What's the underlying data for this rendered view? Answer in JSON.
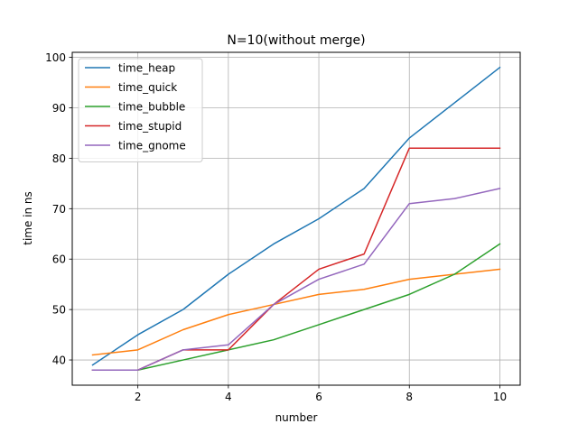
{
  "chart_data": {
    "type": "line",
    "title": "N=10(without merge)",
    "xlabel": "number",
    "ylabel": "time in ns",
    "x": [
      1,
      2,
      3,
      4,
      5,
      6,
      7,
      8,
      9,
      10
    ],
    "xlim": [
      0.55,
      10.45
    ],
    "ylim": [
      35,
      101
    ],
    "xticks": [
      2,
      4,
      6,
      8,
      10
    ],
    "yticks": [
      40,
      50,
      60,
      70,
      80,
      90,
      100
    ],
    "grid": true,
    "legend_position": "top-left",
    "series": [
      {
        "name": "time_heap",
        "color": "#1f77b4",
        "values": [
          39,
          45,
          50,
          57,
          63,
          68,
          74,
          84,
          91,
          98
        ]
      },
      {
        "name": "time_quick",
        "color": "#ff7f0e",
        "values": [
          41,
          42,
          46,
          49,
          51,
          53,
          54,
          56,
          57,
          58
        ]
      },
      {
        "name": "time_bubble",
        "color": "#2ca02c",
        "values": [
          38,
          38,
          40,
          42,
          44,
          47,
          50,
          53,
          57,
          63
        ]
      },
      {
        "name": "time_stupid",
        "color": "#d62728",
        "values": [
          38,
          38,
          42,
          42,
          51,
          58,
          61,
          82,
          82,
          82
        ]
      },
      {
        "name": "time_gnome",
        "color": "#9467bd",
        "values": [
          38,
          38,
          42,
          43,
          51,
          56,
          59,
          71,
          72,
          74
        ]
      }
    ]
  }
}
